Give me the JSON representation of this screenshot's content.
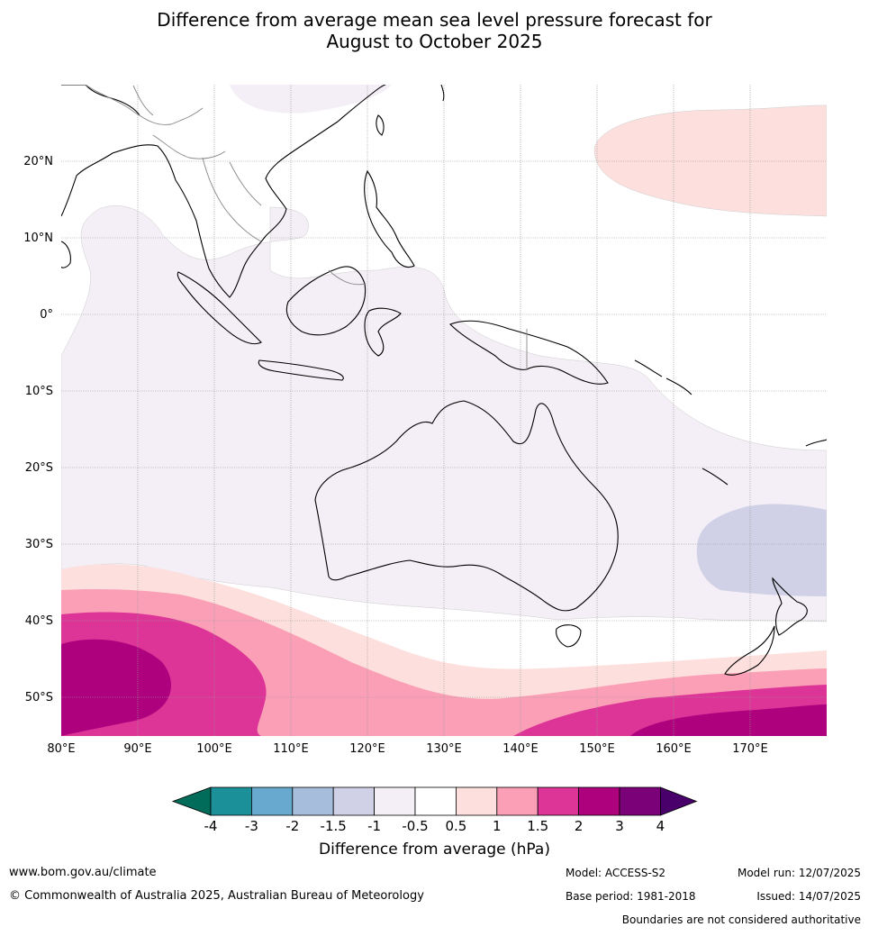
{
  "title_line1": "Difference from average mean sea level pressure forecast for",
  "title_line2": "August to October 2025",
  "lon_labels": [
    "80°E",
    "90°E",
    "100°E",
    "110°E",
    "120°E",
    "130°E",
    "140°E",
    "150°E",
    "160°E",
    "170°E"
  ],
  "lat_labels": [
    "20°N",
    "10°N",
    "0°",
    "10°S",
    "20°S",
    "30°S",
    "40°S",
    "50°S"
  ],
  "colorbar": {
    "ticks": [
      "-4",
      "-3",
      "-2",
      "-1.5",
      "-1",
      "-0.5",
      "0.5",
      "1",
      "1.5",
      "2",
      "3",
      "4"
    ],
    "colors": [
      "#1c9099",
      "#67a9cf",
      "#a6bddb",
      "#d0d1e6",
      "#f4eef6",
      "#ffffff",
      "#fde0dd",
      "#fa9fb5",
      "#dd3497",
      "#ae017e",
      "#7a0177"
    ],
    "under_color": "#016c59",
    "over_color": "#49006a",
    "label": "Difference from average (hPa)"
  },
  "footer": {
    "website": "www.bom.gov.au/climate",
    "copyright": "© Commonwealth of Australia 2025, Australian Bureau of Meteorology",
    "model": "Model: ACCESS-S2",
    "base_period": "Base period: 1981-2018",
    "model_run": "Model run: 12/07/2025",
    "issued": "Issued: 14/07/2025",
    "disclaimer": "Boundaries are not considered authoritative"
  }
}
